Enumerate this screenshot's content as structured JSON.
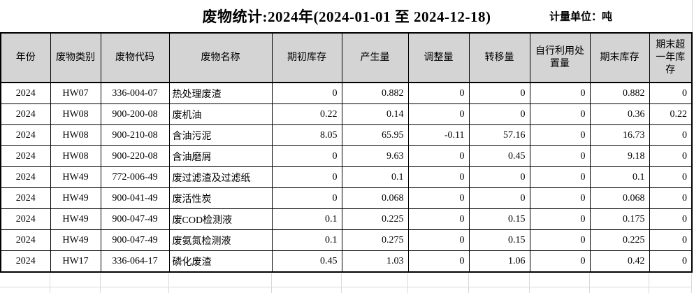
{
  "page": {
    "title": "废物统计:2024年(2024-01-01 至 2024-12-18)",
    "unit_label": "计量单位：吨"
  },
  "table": {
    "columns": [
      "年份",
      "废物类别",
      "废物代码",
      "废物名称",
      "期初库存",
      "产生量",
      "调整量",
      "转移量",
      "自行利用处\n置量",
      "期末库存",
      "期末超\n一年库\n存"
    ],
    "rows": [
      [
        "2024",
        "HW07",
        "336-004-07",
        "热处理废渣",
        "0",
        "0.882",
        "0",
        "0",
        "0",
        "0.882",
        "0"
      ],
      [
        "2024",
        "HW08",
        "900-200-08",
        "废机油",
        "0.22",
        "0.14",
        "0",
        "0",
        "0",
        "0.36",
        "0.22"
      ],
      [
        "2024",
        "HW08",
        "900-210-08",
        "含油污泥",
        "8.05",
        "65.95",
        "-0.11",
        "57.16",
        "0",
        "16.73",
        "0"
      ],
      [
        "2024",
        "HW08",
        "900-220-08",
        "含油磨屑",
        "0",
        "9.63",
        "0",
        "0.45",
        "0",
        "9.18",
        "0"
      ],
      [
        "2024",
        "HW49",
        "772-006-49",
        "废过滤渣及过滤纸",
        "0",
        "0.1",
        "0",
        "0",
        "0",
        "0.1",
        "0"
      ],
      [
        "2024",
        "HW49",
        "900-041-49",
        "废活性炭",
        "0",
        "0.068",
        "0",
        "0",
        "0",
        "0.068",
        "0"
      ],
      [
        "2024",
        "HW49",
        "900-047-49",
        "废COD检测液",
        "0.1",
        "0.225",
        "0",
        "0.15",
        "0",
        "0.175",
        "0"
      ],
      [
        "2024",
        "HW49",
        "900-047-49",
        "废氨氮检测液",
        "0.1",
        "0.275",
        "0",
        "0.15",
        "0",
        "0.225",
        "0"
      ],
      [
        "2024",
        "HW17",
        "336-064-17",
        "磷化废渣",
        "0.45",
        "1.03",
        "0",
        "1.06",
        "0",
        "0.42",
        "0"
      ]
    ]
  },
  "colors": {
    "header_bg": "#d4d4d4",
    "table_border": "#000000",
    "ghost_gridline": "#d9d9d9"
  }
}
